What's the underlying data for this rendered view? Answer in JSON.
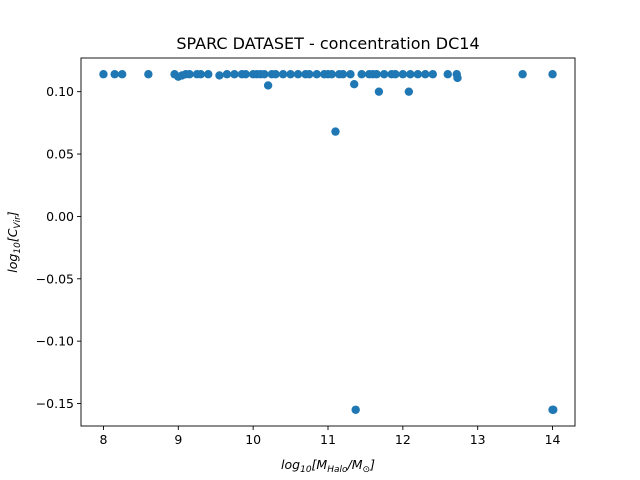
{
  "chart_data": {
    "type": "scatter",
    "title": "SPARC DATASET - concentration DC14",
    "xlabel": "log10[MHalo/M⊙]",
    "ylabel": "log10[CVir]",
    "xlim": [
      7.7,
      14.3
    ],
    "ylim": [
      -0.168,
      0.127
    ],
    "xticks": [
      8,
      9,
      10,
      11,
      12,
      13,
      14
    ],
    "yticks": [
      -0.15,
      -0.1,
      -0.05,
      0.0,
      0.05,
      0.1
    ],
    "ytick_labels": [
      "−0.15",
      "−0.10",
      "−0.05",
      "0.00",
      "0.05",
      "0.10"
    ],
    "grid": false,
    "legend": "none",
    "color": "#1f77b4",
    "points": [
      [
        8.0,
        0.114
      ],
      [
        8.15,
        0.114
      ],
      [
        8.25,
        0.114
      ],
      [
        8.6,
        0.114
      ],
      [
        8.95,
        0.114
      ],
      [
        9.0,
        0.112
      ],
      [
        9.05,
        0.113
      ],
      [
        9.1,
        0.114
      ],
      [
        9.15,
        0.114
      ],
      [
        9.25,
        0.114
      ],
      [
        9.3,
        0.114
      ],
      [
        9.4,
        0.114
      ],
      [
        9.55,
        0.113
      ],
      [
        9.65,
        0.114
      ],
      [
        9.75,
        0.114
      ],
      [
        9.85,
        0.114
      ],
      [
        9.9,
        0.114
      ],
      [
        10.0,
        0.114
      ],
      [
        10.05,
        0.114
      ],
      [
        10.1,
        0.114
      ],
      [
        10.15,
        0.114
      ],
      [
        10.2,
        0.105
      ],
      [
        10.25,
        0.114
      ],
      [
        10.3,
        0.114
      ],
      [
        10.4,
        0.114
      ],
      [
        10.5,
        0.114
      ],
      [
        10.6,
        0.114
      ],
      [
        10.7,
        0.114
      ],
      [
        10.75,
        0.114
      ],
      [
        10.85,
        0.114
      ],
      [
        10.95,
        0.114
      ],
      [
        11.0,
        0.114
      ],
      [
        11.05,
        0.114
      ],
      [
        11.1,
        0.068
      ],
      [
        11.15,
        0.114
      ],
      [
        11.2,
        0.114
      ],
      [
        11.3,
        0.114
      ],
      [
        11.35,
        0.106
      ],
      [
        11.37,
        -0.155
      ],
      [
        11.45,
        0.114
      ],
      [
        11.55,
        0.114
      ],
      [
        11.6,
        0.114
      ],
      [
        11.65,
        0.114
      ],
      [
        11.68,
        0.1
      ],
      [
        11.75,
        0.114
      ],
      [
        11.85,
        0.114
      ],
      [
        11.9,
        0.114
      ],
      [
        12.0,
        0.114
      ],
      [
        12.08,
        0.1
      ],
      [
        12.1,
        0.114
      ],
      [
        12.2,
        0.114
      ],
      [
        12.3,
        0.114
      ],
      [
        12.4,
        0.114
      ],
      [
        12.6,
        0.114
      ],
      [
        12.72,
        0.114
      ],
      [
        12.73,
        0.111
      ],
      [
        13.6,
        0.114
      ],
      [
        14.0,
        0.114
      ],
      [
        14.0,
        -0.155
      ],
      [
        14.01,
        -0.155
      ]
    ]
  }
}
